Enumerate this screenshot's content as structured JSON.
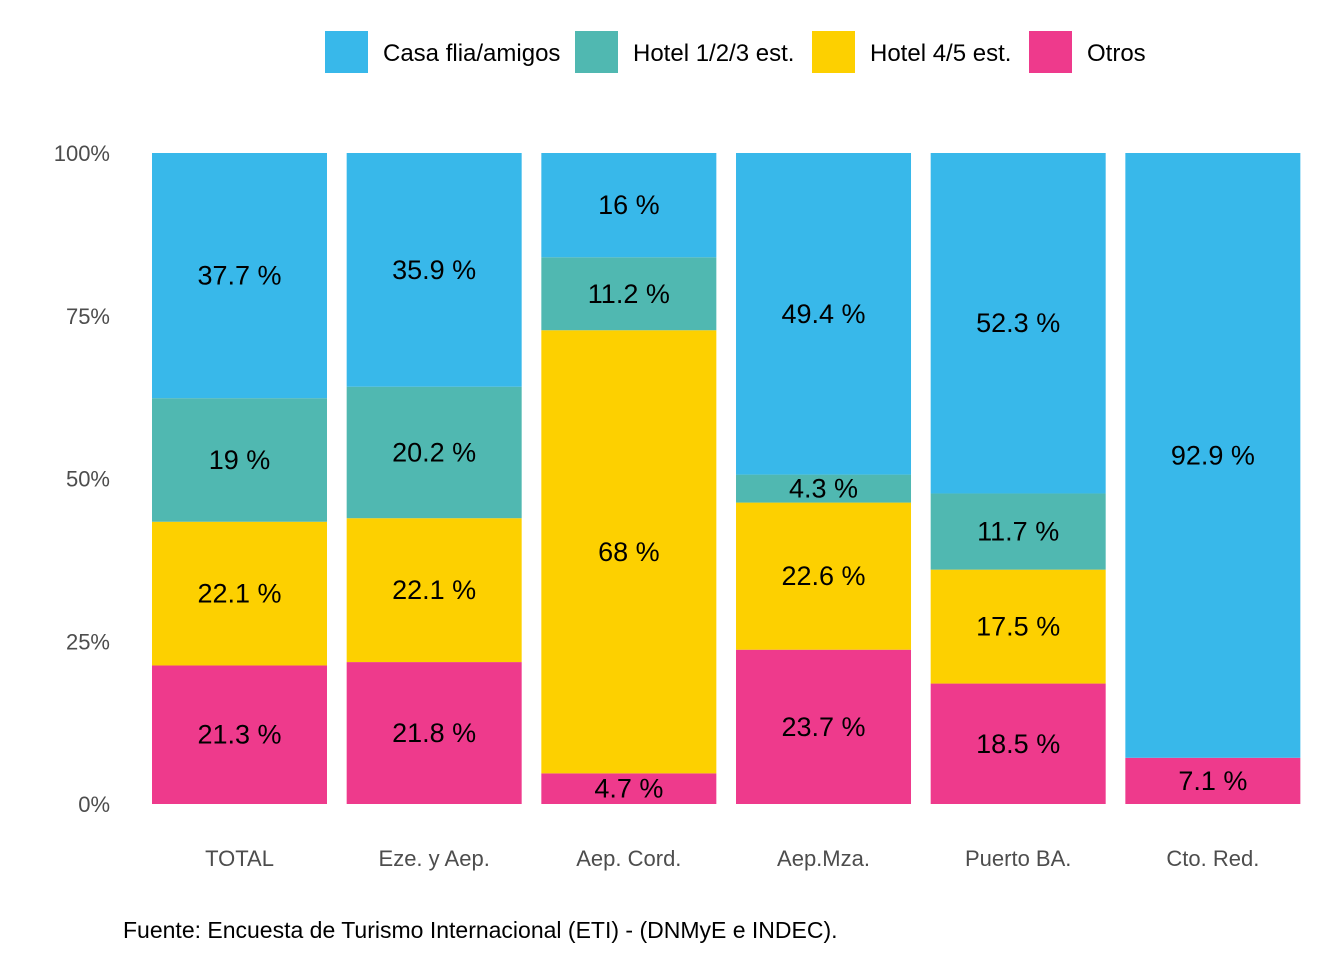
{
  "caption": "Fuente: Encuesta de Turismo Internacional (ETI) - (DNMyE e INDEC).",
  "chart_data": {
    "type": "bar",
    "stacked": true,
    "normalized": true,
    "categories": [
      "TOTAL",
      "Eze. y Aep.",
      "Aep. Cord.",
      "Aep.Mza.",
      "Puerto BA.",
      "Cto. Red."
    ],
    "series": [
      {
        "name": "Casa flia/amigos",
        "color": "#38B8EA",
        "values": [
          37.7,
          35.9,
          16,
          49.4,
          52.3,
          92.9
        ]
      },
      {
        "name": "Hotel 1/2/3 est.",
        "color": "#50B8B1",
        "values": [
          19,
          20.2,
          11.2,
          4.3,
          11.7,
          0
        ]
      },
      {
        "name": "Hotel 4/5 est.",
        "color": "#FDD000",
        "values": [
          22.1,
          22.1,
          68,
          22.6,
          17.5,
          0
        ]
      },
      {
        "name": "Otros",
        "color": "#EE3A8C",
        "values": [
          21.3,
          21.8,
          4.7,
          23.7,
          18.5,
          7.1
        ]
      }
    ],
    "ylim": [
      0,
      100
    ],
    "yticks": [
      "0%",
      "25%",
      "50%",
      "75%",
      "100%"
    ],
    "ytick_values": [
      0,
      25,
      50,
      75,
      100
    ],
    "label_suffix": " %",
    "legend_position": "top",
    "grid": false,
    "xlabel": "",
    "ylabel": ""
  }
}
